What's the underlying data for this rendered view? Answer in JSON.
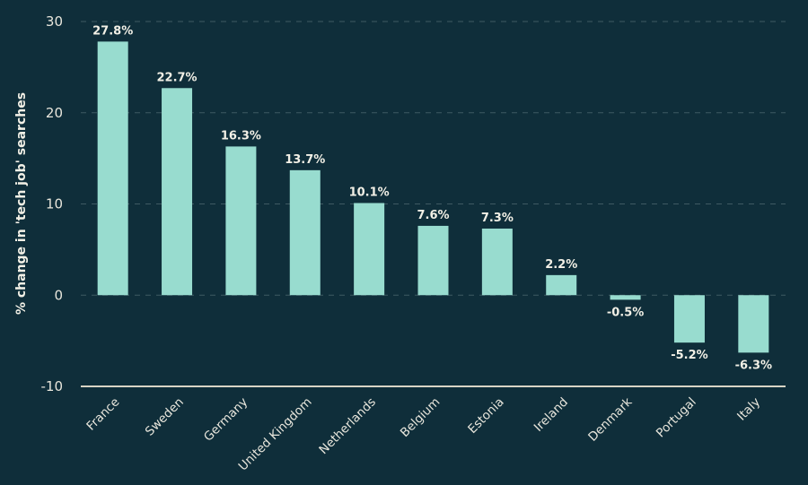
{
  "chart_data": {
    "type": "bar",
    "title": "",
    "xlabel": "",
    "ylabel": "% change in 'tech job' searches",
    "ylim": [
      -10,
      30
    ],
    "yticks": [
      -10,
      0,
      10,
      20,
      30
    ],
    "grid": true,
    "categories": [
      "France",
      "Sweden",
      "Germany",
      "United Kingdom",
      "Netherlands",
      "Belgium",
      "Estonia",
      "Ireland",
      "Denmark",
      "Portugal",
      "Italy"
    ],
    "values": [
      27.8,
      22.7,
      16.3,
      13.7,
      10.1,
      7.6,
      7.3,
      2.2,
      -0.5,
      -5.2,
      -6.3
    ],
    "data_labels": [
      "27.8%",
      "22.7%",
      "16.3%",
      "13.7%",
      "10.1%",
      "7.6%",
      "7.3%",
      "2.2%",
      "-0.5%",
      "-5.2%",
      "-6.3%"
    ],
    "colors": {
      "background": "#0f2e3a",
      "bar": "#98dccf",
      "text": "#f2f0e6",
      "grid": "#3f5a62",
      "axis": "#d8d4c4"
    }
  }
}
